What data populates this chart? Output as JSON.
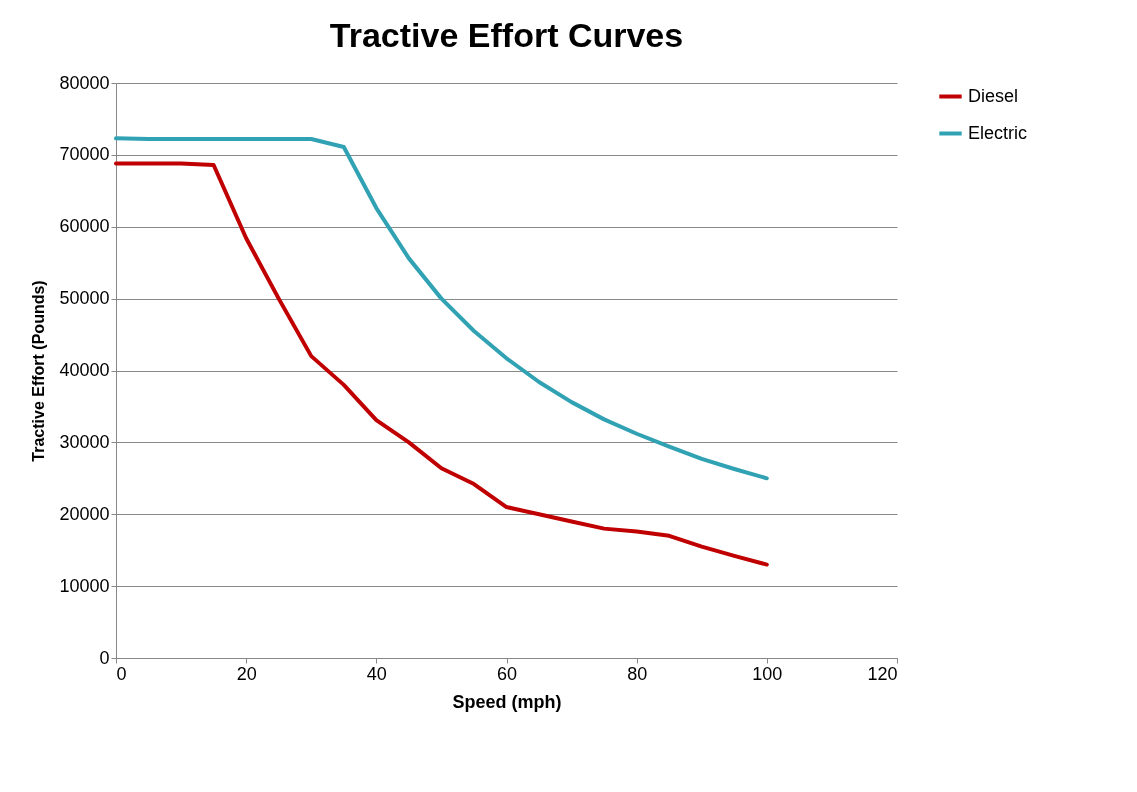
{
  "chart_data": {
    "type": "line",
    "title": "Tractive Effort Curves",
    "xlabel": "Speed (mph)",
    "ylabel": "Tractive Effort (Pounds)",
    "x": [
      0,
      5,
      10,
      15,
      20,
      25,
      30,
      35,
      40,
      45,
      50,
      55,
      60,
      65,
      70,
      75,
      80,
      85,
      90,
      95,
      100
    ],
    "series": [
      {
        "name": "Diesel",
        "color": "#c00000",
        "values": [
          68800,
          68800,
          68800,
          68600,
          58400,
          50000,
          42000,
          38000,
          33100,
          30000,
          26400,
          24200,
          21000,
          20000,
          19000,
          18000,
          17600,
          17000,
          15500,
          14200,
          13000
        ]
      },
      {
        "name": "Electric",
        "color": "#31a2b3",
        "values": [
          72300,
          72200,
          72200,
          72200,
          72200,
          72200,
          72200,
          71100,
          62600,
          55600,
          50000,
          45500,
          41700,
          38400,
          35600,
          33200,
          31200,
          29400,
          27700,
          26300,
          25000
        ]
      }
    ],
    "xlim": [
      0,
      120
    ],
    "xticks": [
      0,
      20,
      40,
      60,
      80,
      100,
      120
    ],
    "ylim": [
      0,
      80000
    ],
    "yticks": [
      0,
      10000,
      20000,
      30000,
      40000,
      50000,
      60000,
      70000,
      80000
    ],
    "grid": "y",
    "legend": "right"
  }
}
